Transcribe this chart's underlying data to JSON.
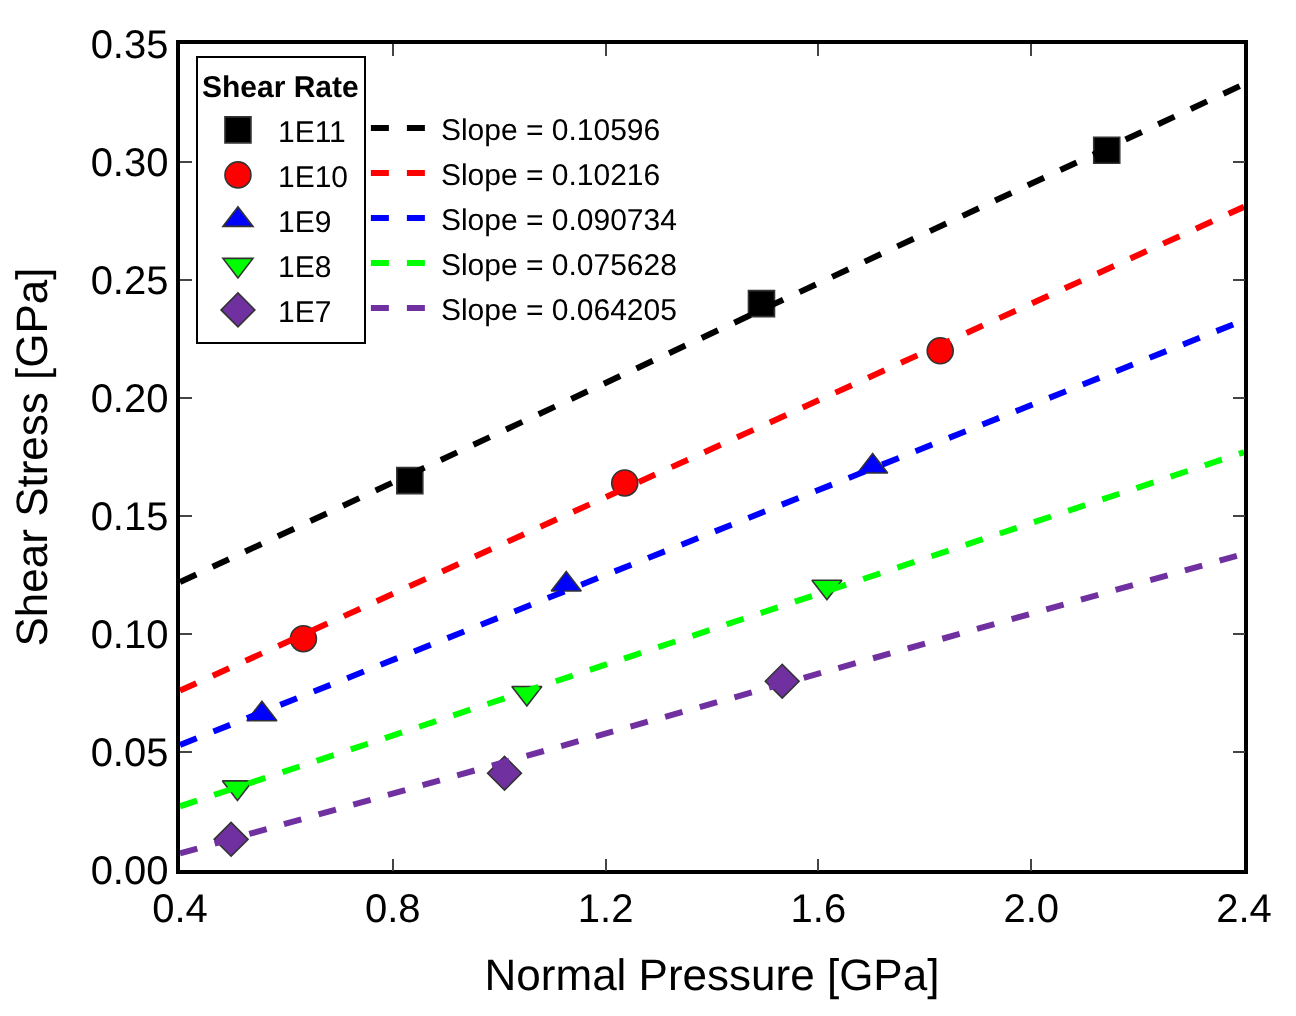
{
  "chart_data": {
    "type": "scatter",
    "xlabel": "Normal Pressure [GPa]",
    "ylabel": "Shear Stress [GPa]",
    "legend_title": "Shear Rate",
    "legend": "top left",
    "xlim": [
      0.4,
      2.4
    ],
    "xticks": [
      0.4,
      0.8,
      1.2,
      1.6,
      {
        "value": 2,
        "label": "2.0"
      },
      2.4
    ],
    "ylim": [
      0,
      0.35
    ],
    "yticks": [
      {
        "value": 0,
        "label": "0.00"
      },
      0.05,
      {
        "value": 0.1,
        "label": "0.10"
      },
      0.15,
      {
        "value": 0.2,
        "label": "0.20"
      },
      0.25,
      {
        "value": 0.3,
        "label": "0.30"
      },
      0.35
    ],
    "series": [
      {
        "name": "1E11",
        "color": "#000000",
        "marker": "square",
        "x": [
          0.832,
          1.493,
          2.142
        ],
        "values": [
          0.165,
          0.24,
          0.305
        ]
      },
      {
        "name": "1E10",
        "color": "#ff0000",
        "marker": "circle",
        "x": [
          0.632,
          1.236,
          1.829
        ],
        "values": [
          0.098,
          0.164,
          0.22
        ]
      },
      {
        "name": "1E9",
        "color": "#0000ff",
        "marker": "triangle",
        "x": [
          0.554,
          1.126,
          1.702
        ],
        "values": [
          0.066,
          0.121,
          0.171
        ]
      },
      {
        "name": "1E8",
        "color": "#00ff00",
        "marker": "triangle-down",
        "x": [
          0.508,
          1.052,
          1.616
        ],
        "values": [
          0.035,
          0.075,
          0.12
        ]
      },
      {
        "name": "1E7",
        "color": "#7030a0",
        "marker": "diamond",
        "x": [
          0.496,
          1.01,
          1.532
        ],
        "values": [
          0.013,
          0.041,
          0.08
        ]
      },
      {
        "type": "line",
        "name": "Slope = 0.10596",
        "color": "#000000",
        "line_style": "dashed",
        "x": [
          0.4,
          2.4
        ],
        "values": [
          0.122,
          0.333
        ]
      },
      {
        "type": "line",
        "name": "Slope = 0.10216",
        "color": "#ff0000",
        "line_style": "dashed",
        "x": [
          0.4,
          2.4
        ],
        "values": [
          0.076,
          0.281
        ]
      },
      {
        "type": "line",
        "name": "Slope = 0.090734",
        "color": "#0000ff",
        "line_style": "dashed",
        "x": [
          0.4,
          2.4
        ],
        "values": [
          0.053,
          0.233
        ]
      },
      {
        "type": "line",
        "name": "Slope = 0.075628",
        "color": "#00ff00",
        "line_style": "dashed",
        "x": [
          0.4,
          2.4
        ],
        "values": [
          0.027,
          0.177
        ]
      },
      {
        "type": "line",
        "name": "Slope = 0.064205",
        "color": "#7030a0",
        "line_style": "dashed",
        "x": [
          0.4,
          2.4
        ],
        "values": [
          0.007,
          0.134
        ]
      }
    ]
  }
}
